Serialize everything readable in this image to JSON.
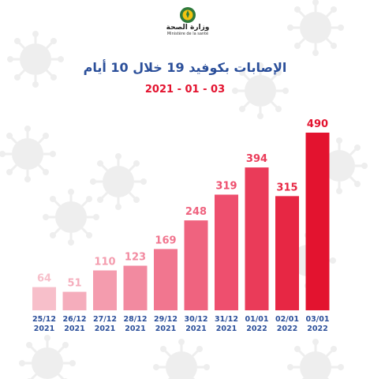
{
  "header": {
    "ministry_ar": "وزارة الصحة",
    "ministry_fr": "Ministère de la santé",
    "title": "الإصابات بكوفيد 19 خلال 10 أيام",
    "subtitle": "2021 - 01 - 03"
  },
  "colors": {
    "title": "#2b4f9a",
    "subtitle": "#e3132f",
    "axis_labels": "#2b4f9a",
    "bar_gradient": [
      "#f7bfca",
      "#f28aa0",
      "#ee4f6e",
      "#e3132f"
    ]
  },
  "chart_data": {
    "type": "bar",
    "categories": [
      [
        "25/12",
        "2021"
      ],
      [
        "26/12",
        "2021"
      ],
      [
        "27/12",
        "2021"
      ],
      [
        "28/12",
        "2021"
      ],
      [
        "29/12",
        "2021"
      ],
      [
        "30/12",
        "2021"
      ],
      [
        "31/12",
        "2021"
      ],
      [
        "01/01",
        "2022"
      ],
      [
        "02/01",
        "2022"
      ],
      [
        "03/01",
        "2022"
      ]
    ],
    "values": [
      64,
      51,
      110,
      123,
      169,
      248,
      319,
      394,
      315,
      490
    ],
    "title": "الإصابات بكوفيد 19 خلال 10 أيام",
    "ylim": [
      0,
      490
    ],
    "grid": false,
    "legend": "none"
  }
}
